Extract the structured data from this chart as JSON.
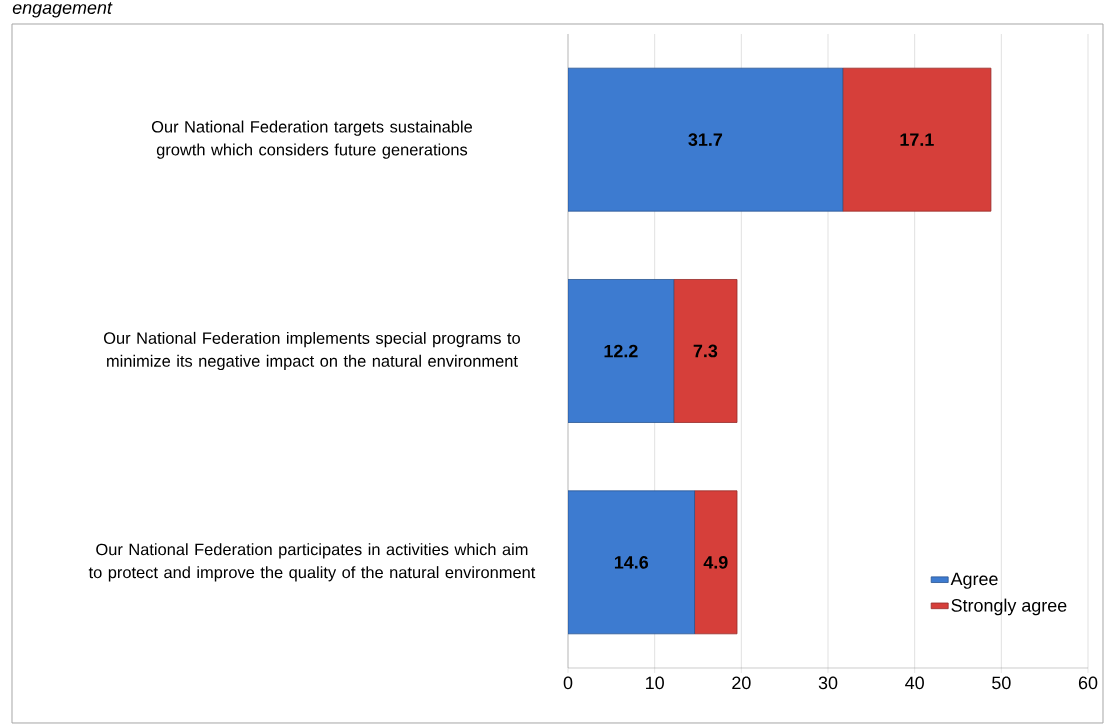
{
  "chart_data": {
    "type": "bar",
    "orientation": "horizontal",
    "stacked": true,
    "title": "engagement",
    "categories": [
      "Our National Federation targets sustainable growth which considers future generations",
      "Our National Federation implements special programs to minimize its negative impact on the natural environment",
      "Our National Federation participates in activities which aim to protect and improve the quality of the natural environment"
    ],
    "series": [
      {
        "name": "Agree",
        "color": "#3d7bd0",
        "values": [
          31.7,
          12.2,
          14.6
        ]
      },
      {
        "name": "Strongly agree",
        "color": "#d63f3a",
        "values": [
          17.1,
          7.3,
          4.9
        ]
      }
    ],
    "xlim": [
      0,
      60
    ],
    "xticks": [
      0,
      10,
      20,
      30,
      40,
      50,
      60
    ],
    "grid": "x",
    "legend": "bottom right",
    "data_labels": true
  }
}
